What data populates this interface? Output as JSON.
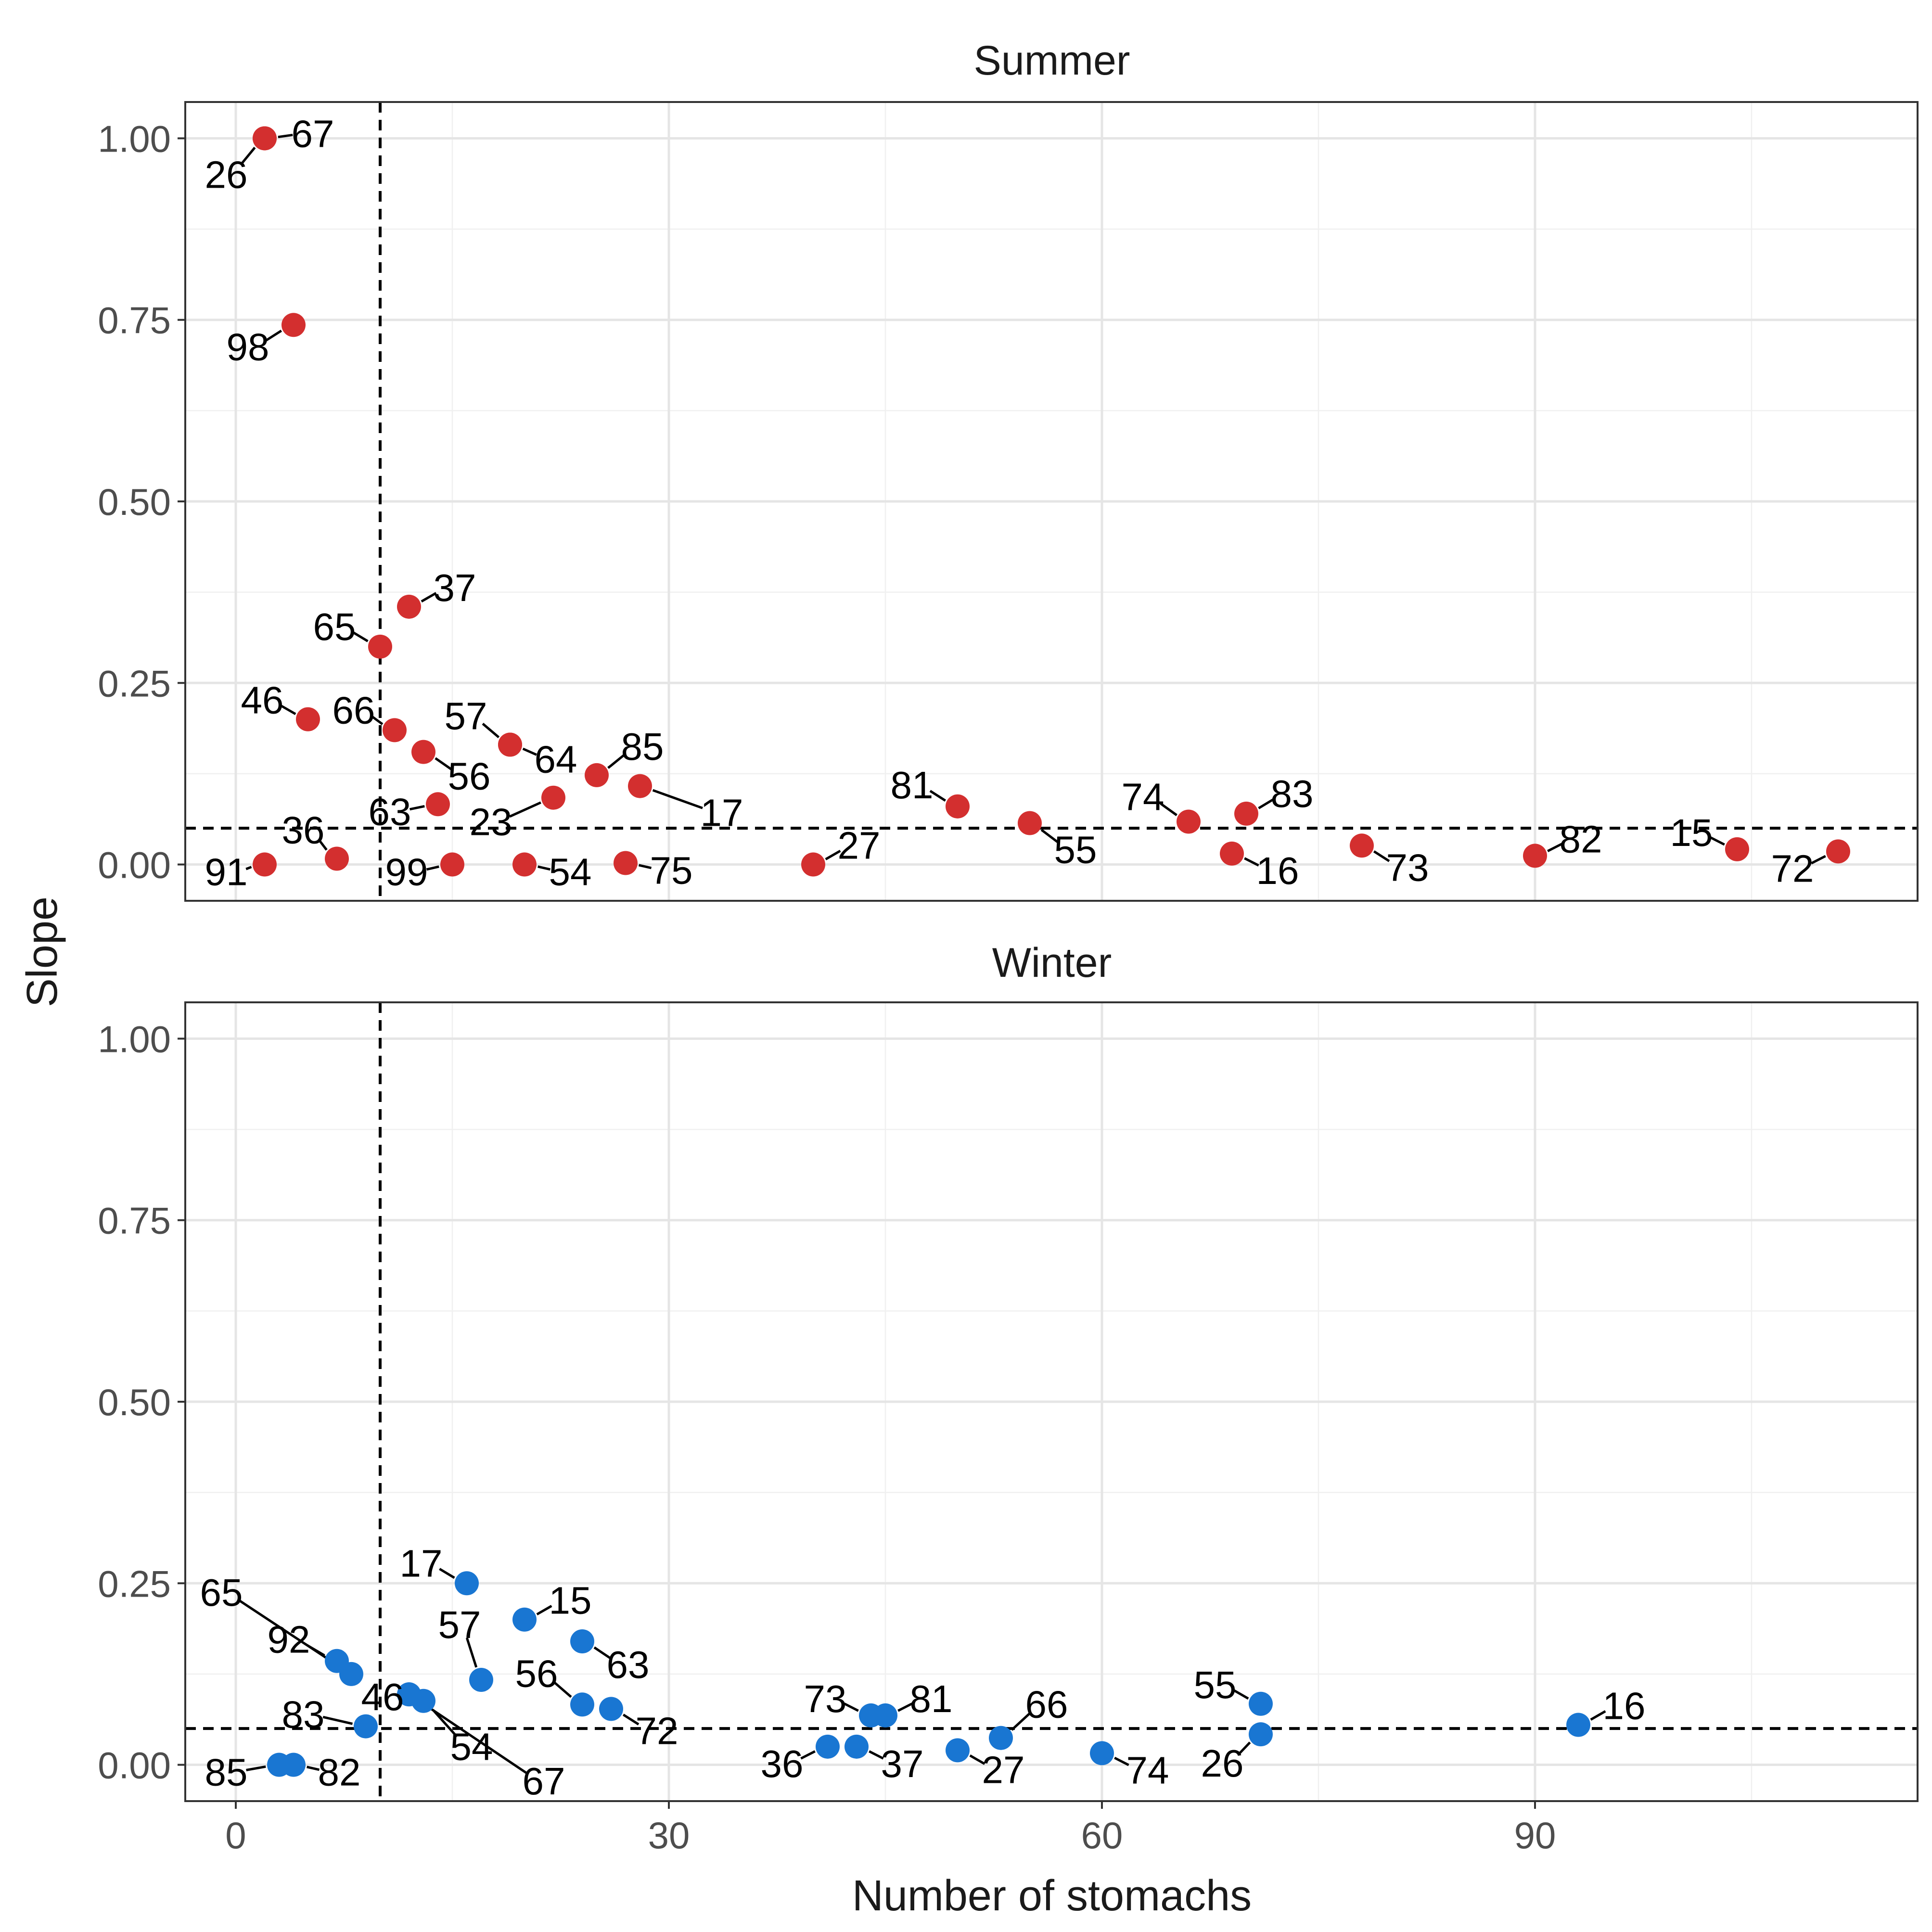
{
  "chart_data": {
    "type": "scatter",
    "xlabel": "Number of stomachs",
    "ylabel": "Slope",
    "xlim": [
      -3.5,
      116.5
    ],
    "ylim": [
      -0.05,
      1.05
    ],
    "xticks": [
      0,
      30,
      60,
      90
    ],
    "xtick_labels": [
      "0",
      "30",
      "60",
      "90"
    ],
    "yticks": [
      0,
      0.25,
      0.5,
      0.75,
      1.0
    ],
    "ytick_labels": [
      "0.00",
      "0.25",
      "0.50",
      "0.75",
      "1.00"
    ],
    "grid": true,
    "legend": "none",
    "ref_lines": {
      "vertical_x": 10,
      "horizontal_y": 0.05
    },
    "colors": {
      "Summer": "#d32f2f",
      "Winter": "#1976d2"
    },
    "panels": [
      {
        "title": "Summer",
        "points": [
          {
            "label": "26",
            "x": 2,
            "y": 1.0
          },
          {
            "label": "67",
            "x": 2,
            "y": 1.0
          },
          {
            "label": "98",
            "x": 4,
            "y": 0.743
          },
          {
            "label": "37",
            "x": 12,
            "y": 0.355
          },
          {
            "label": "65",
            "x": 10,
            "y": 0.3
          },
          {
            "label": "46",
            "x": 5,
            "y": 0.2
          },
          {
            "label": "66",
            "x": 11,
            "y": 0.185
          },
          {
            "label": "56",
            "x": 13,
            "y": 0.155
          },
          {
            "label": "57",
            "x": 19,
            "y": 0.165
          },
          {
            "label": "64",
            "x": 19,
            "y": 0.165
          },
          {
            "label": "85",
            "x": 25,
            "y": 0.123
          },
          {
            "label": "17",
            "x": 28,
            "y": 0.108
          },
          {
            "label": "63",
            "x": 14,
            "y": 0.083
          },
          {
            "label": "23",
            "x": 22,
            "y": 0.092
          },
          {
            "label": "36",
            "x": 7,
            "y": 0.008
          },
          {
            "label": "91",
            "x": 2,
            "y": 0.0
          },
          {
            "label": "99",
            "x": 15,
            "y": 0.0
          },
          {
            "label": "54",
            "x": 20,
            "y": 0.0
          },
          {
            "label": "75",
            "x": 27,
            "y": 0.002
          },
          {
            "label": "27",
            "x": 40,
            "y": 0.0
          },
          {
            "label": "81",
            "x": 50,
            "y": 0.08
          },
          {
            "label": "55",
            "x": 55,
            "y": 0.057
          },
          {
            "label": "74",
            "x": 66,
            "y": 0.059
          },
          {
            "label": "83",
            "x": 70,
            "y": 0.07
          },
          {
            "label": "16",
            "x": 69,
            "y": 0.015
          },
          {
            "label": "73",
            "x": 78,
            "y": 0.026
          },
          {
            "label": "82",
            "x": 90,
            "y": 0.012
          },
          {
            "label": "15",
            "x": 104,
            "y": 0.021
          },
          {
            "label": "72",
            "x": 111,
            "y": 0.018
          }
        ]
      },
      {
        "title": "Winter",
        "points": [
          {
            "label": "17",
            "x": 16,
            "y": 0.25
          },
          {
            "label": "15",
            "x": 20,
            "y": 0.2
          },
          {
            "label": "63",
            "x": 24,
            "y": 0.17
          },
          {
            "label": "65",
            "x": 8,
            "y": 0.125
          },
          {
            "label": "92",
            "x": 7,
            "y": 0.143
          },
          {
            "label": "57",
            "x": 17,
            "y": 0.117
          },
          {
            "label": "46",
            "x": 12,
            "y": 0.097
          },
          {
            "label": "54",
            "x": 13,
            "y": 0.088
          },
          {
            "label": "67",
            "x": 12,
            "y": 0.097
          },
          {
            "label": "83",
            "x": 9,
            "y": 0.053
          },
          {
            "label": "56",
            "x": 24,
            "y": 0.083
          },
          {
            "label": "72",
            "x": 26,
            "y": 0.077
          },
          {
            "label": "85",
            "x": 3,
            "y": 0.0
          },
          {
            "label": "82",
            "x": 4,
            "y": 0.0
          },
          {
            "label": "73",
            "x": 44,
            "y": 0.068
          },
          {
            "label": "81",
            "x": 45,
            "y": 0.068
          },
          {
            "label": "36",
            "x": 41,
            "y": 0.025
          },
          {
            "label": "37",
            "x": 43,
            "y": 0.025
          },
          {
            "label": "27",
            "x": 50,
            "y": 0.02
          },
          {
            "label": "66",
            "x": 53,
            "y": 0.037
          },
          {
            "label": "74",
            "x": 60,
            "y": 0.016
          },
          {
            "label": "55",
            "x": 71,
            "y": 0.084
          },
          {
            "label": "26",
            "x": 71,
            "y": 0.042
          },
          {
            "label": "16",
            "x": 93,
            "y": 0.055
          }
        ]
      }
    ]
  }
}
